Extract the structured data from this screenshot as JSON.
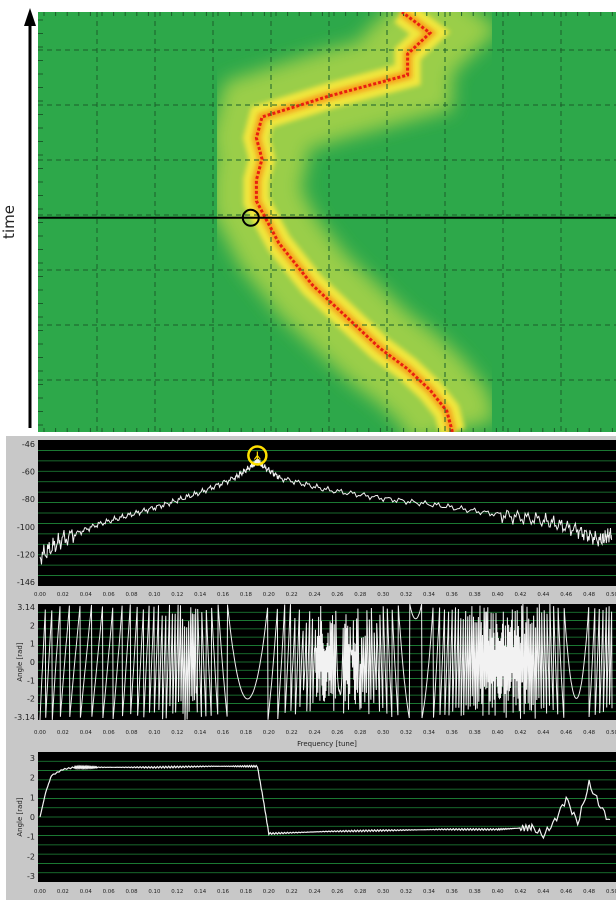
{
  "colors": {
    "spectrogram_bg": "#2da84a",
    "ridge_core": "#e8200f",
    "ridge_halo": "#f0e63c",
    "panel_bg": "#000000",
    "grid_green": "#1f8a3a",
    "trace": "#f2f2f2",
    "marker_yellow": "#ffe000",
    "frame_grey": "#c8c8c8"
  },
  "chart_data": [
    {
      "id": "spectrogram",
      "type": "heatmap",
      "ylabel": "time",
      "title": "",
      "xlabel": "",
      "ridge": {
        "time": [
          0,
          0.05,
          0.1,
          0.15,
          0.2,
          0.25,
          0.3,
          0.35,
          0.4,
          0.45,
          0.5,
          0.55,
          0.6,
          0.65,
          0.7,
          0.75,
          0.8,
          0.85,
          0.9,
          0.95,
          1.0
        ],
        "tune": [
          0.37,
          0.365,
          0.35,
          0.33,
          0.305,
          0.285,
          0.265,
          0.245,
          0.23,
          0.215,
          0.205,
          0.195,
          0.195,
          0.2,
          0.195,
          0.2,
          0.26,
          0.33,
          0.33,
          0.35,
          0.325
        ]
      },
      "cursor": {
        "tune": 0.19,
        "time": 0.51
      }
    },
    {
      "id": "amplitude",
      "type": "line",
      "ylim": [
        -146,
        -46
      ],
      "y_ticks": [
        "-46",
        "-60",
        "-80",
        "-100",
        "-120",
        "-146"
      ],
      "x_ticks": [
        "0.00",
        "0.02",
        "0.04",
        "0.06",
        "0.08",
        "0.10",
        "0.12",
        "0.14",
        "0.16",
        "0.18",
        "0.20",
        "0.22",
        "0.24",
        "0.26",
        "0.28",
        "0.30",
        "0.32",
        "0.34",
        "0.36",
        "0.38",
        "0.40",
        "0.42",
        "0.44",
        "0.46",
        "0.48",
        "0.50"
      ],
      "xlim": [
        0,
        0.5
      ],
      "peak": {
        "x": 0.19,
        "y": -60
      },
      "series": [
        {
          "x": [
            0.0,
            0.02,
            0.05,
            0.08,
            0.11,
            0.14,
            0.17,
            0.185,
            0.19,
            0.195,
            0.21,
            0.25,
            0.3,
            0.35,
            0.4,
            0.44,
            0.47,
            0.49,
            0.5
          ],
          "values": [
            -126,
            -114,
            -104,
            -97,
            -90,
            -82,
            -72,
            -64,
            -60,
            -64,
            -72,
            -80,
            -86,
            -91,
            -97,
            -101,
            -108,
            -115,
            -110
          ]
        }
      ]
    },
    {
      "id": "phase",
      "type": "line",
      "xlabel": "Frequency [tune]",
      "ylabel": "Angle [rad]",
      "ylim": [
        -3.14,
        3.14
      ],
      "y_ticks": [
        "3.14",
        "2",
        "1",
        "0",
        "-1",
        "-2",
        "-3.14"
      ],
      "x_ticks": [
        "0.00",
        "0.02",
        "0.04",
        "0.06",
        "0.08",
        "0.10",
        "0.12",
        "0.14",
        "0.16",
        "0.18",
        "0.20",
        "0.22",
        "0.24",
        "0.26",
        "0.28",
        "0.30",
        "0.32",
        "0.34",
        "0.36",
        "0.38",
        "0.40",
        "0.42",
        "0.44",
        "0.46",
        "0.48",
        "0.50"
      ],
      "xlim": [
        0,
        0.5
      ],
      "series": [
        {
          "x": [
            0.0,
            0.5
          ],
          "values": [
            -3.14,
            3.14
          ],
          "pattern": "sawtooth"
        }
      ]
    },
    {
      "id": "angle",
      "type": "line",
      "ylabel": "Angle [rad]",
      "ylim": [
        -3.14,
        3.14
      ],
      "y_ticks": [
        "3",
        "2",
        "1",
        "0",
        "-1",
        "-2",
        "-3"
      ],
      "x_ticks": [
        "0.00",
        "0.02",
        "0.04",
        "0.06",
        "0.08",
        "0.10",
        "0.12",
        "0.14",
        "0.16",
        "0.18",
        "0.20",
        "0.22",
        "0.24",
        "0.26",
        "0.28",
        "0.30",
        "0.32",
        "0.34",
        "0.36",
        "0.38",
        "0.40",
        "0.42",
        "0.44",
        "0.46",
        "0.48",
        "0.50"
      ],
      "xlim": [
        0,
        0.5
      ],
      "series": [
        {
          "x": [
            0.0,
            0.005,
            0.01,
            0.02,
            0.03,
            0.05,
            0.1,
            0.15,
            0.19,
            0.195,
            0.2,
            0.25,
            0.3,
            0.35,
            0.4,
            0.43,
            0.44,
            0.45,
            0.46,
            0.47,
            0.48,
            0.49,
            0.5
          ],
          "values": [
            0,
            1.2,
            2.0,
            2.3,
            2.4,
            2.4,
            2.4,
            2.45,
            2.45,
            0.9,
            -0.8,
            -0.7,
            -0.65,
            -0.6,
            -0.6,
            -0.5,
            -0.9,
            -0.2,
            0.9,
            -0.3,
            1.6,
            0.5,
            -0.4
          ]
        }
      ]
    }
  ]
}
